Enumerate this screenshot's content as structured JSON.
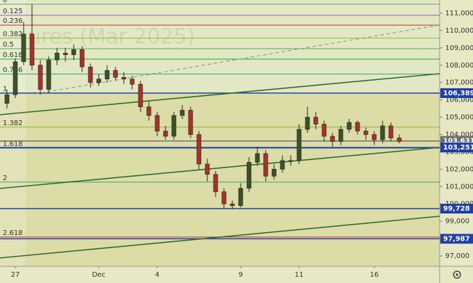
{
  "chart_data": {
    "type": "candlestick",
    "watermark": "ures (Mar 2025)",
    "x": [
      null,
      "27",
      null,
      null,
      null,
      null,
      null,
      null,
      null,
      null,
      null,
      "Dec",
      null,
      null,
      null,
      null,
      null,
      null,
      "4",
      null,
      null,
      null,
      null,
      null,
      null,
      null,
      null,
      null,
      "9",
      null,
      null,
      null,
      null,
      null,
      null,
      "11",
      null,
      null,
      null,
      null,
      null,
      null,
      null,
      null,
      "16",
      null,
      null,
      null
    ],
    "open": [
      105800,
      106300,
      108200,
      109800,
      108000,
      106600,
      108300,
      108700,
      108600,
      108900,
      107900,
      107000,
      107200,
      107700,
      107300,
      107200,
      106900,
      105600,
      105100,
      104200,
      103900,
      105100,
      105400,
      104000,
      102300,
      101700,
      100700,
      100000,
      99900,
      100900,
      102400,
      102900,
      101600,
      102000,
      102500,
      102500,
      104300,
      105000,
      104600,
      103900,
      103600,
      104300,
      104700,
      104200,
      104000,
      103700,
      104500,
      103800
    ],
    "high": [
      106600,
      108400,
      110500,
      111500,
      108300,
      108500,
      109000,
      109000,
      109200,
      109100,
      108100,
      107500,
      108000,
      107900,
      107600,
      107400,
      107100,
      105900,
      105300,
      104500,
      105300,
      105700,
      105600,
      104200,
      102600,
      101900,
      100900,
      100200,
      101200,
      102700,
      103300,
      103100,
      102300,
      102800,
      102800,
      104600,
      105600,
      105300,
      104800,
      104100,
      104500,
      104900,
      104800,
      104400,
      104200,
      104800,
      104700,
      104000
    ],
    "low": [
      105500,
      106100,
      108000,
      107700,
      106300,
      106400,
      108000,
      108200,
      108300,
      107600,
      106700,
      106800,
      107000,
      107100,
      106900,
      106600,
      105300,
      104800,
      103900,
      103700,
      103700,
      104900,
      103800,
      102000,
      101300,
      100400,
      99700,
      99700,
      99800,
      100700,
      102200,
      101300,
      101400,
      101800,
      102200,
      102300,
      104100,
      104300,
      103600,
      103300,
      103400,
      104100,
      104000,
      103700,
      103400,
      103500,
      103600,
      103500
    ],
    "close": [
      106300,
      108200,
      109800,
      108000,
      106600,
      108300,
      108700,
      108600,
      108900,
      107900,
      107000,
      107200,
      107700,
      107300,
      107200,
      106900,
      105600,
      105100,
      104200,
      103900,
      105100,
      105400,
      104000,
      102300,
      101700,
      100700,
      100000,
      99900,
      100900,
      102400,
      102900,
      101600,
      102000,
      102500,
      102500,
      104300,
      105000,
      104600,
      103900,
      103600,
      104300,
      104700,
      104200,
      104000,
      103700,
      104500,
      103800,
      103600
    ],
    "up_color": "#3d5229",
    "down_color": "#a8322a",
    "ylim": [
      96400,
      111760
    ],
    "yticks": [
      {
        "value": 97000,
        "label": "97,000"
      },
      {
        "value": 98000,
        "label": "98,000"
      },
      {
        "value": 99000,
        "label": "99,000"
      },
      {
        "value": 100000,
        "label": "100,000"
      },
      {
        "value": 101000,
        "label": "101,000"
      },
      {
        "value": 102000,
        "label": "102,000"
      },
      {
        "value": 103000,
        "label": "103,000"
      },
      {
        "value": 104000,
        "label": "104,000"
      },
      {
        "value": 105000,
        "label": "105,000"
      },
      {
        "value": 106000,
        "label": "106,000"
      },
      {
        "value": 107000,
        "label": "107,000"
      },
      {
        "value": 108000,
        "label": "108,000"
      },
      {
        "value": 109000,
        "label": "109,000"
      },
      {
        "value": 110000,
        "label": "110,000"
      },
      {
        "value": 111000,
        "label": "111,000"
      }
    ],
    "fib_levels": [
      {
        "label": "0",
        "value": 111520,
        "color": "#8a8a8a"
      },
      {
        "label": "0.125",
        "value": 110879,
        "color": "#8a5cc9"
      },
      {
        "label": "0.236",
        "value": 110309,
        "color": "#c03030"
      },
      {
        "label": "0.382",
        "value": 109560,
        "color": "#8ab830"
      },
      {
        "label": "0.5",
        "value": 108955,
        "color": "#4caf50"
      },
      {
        "label": "0.618",
        "value": 108349,
        "color": "#3a9a3a"
      },
      {
        "label": "0.786",
        "value": 107487,
        "color": "#2aa0a0"
      },
      {
        "label": "1",
        "value": 106389,
        "color": "#5a7a9a"
      },
      {
        "label": "1.382",
        "value": 104429,
        "color": "#8ab830"
      },
      {
        "label": "1.618",
        "value": 103218,
        "color": "#2040c0"
      },
      {
        "label": "2",
        "value": 101258,
        "color": "#3aa06a"
      },
      {
        "label": "2.618",
        "value": 98087,
        "color": "#c03030"
      }
    ],
    "price_lines": [
      {
        "value": 106389,
        "label": "106,389",
        "color": "#1e3fa8"
      },
      {
        "value": 103631,
        "label": "103,631",
        "color": "#6e6e6e"
      },
      {
        "value": 103251,
        "label": "103,251",
        "color": "#1e3fa8"
      },
      {
        "value": 99728,
        "label": "99,728",
        "color": "#1e3fa8"
      },
      {
        "value": 97987,
        "label": "97,987",
        "color": "#1e3fa8"
      }
    ]
  }
}
